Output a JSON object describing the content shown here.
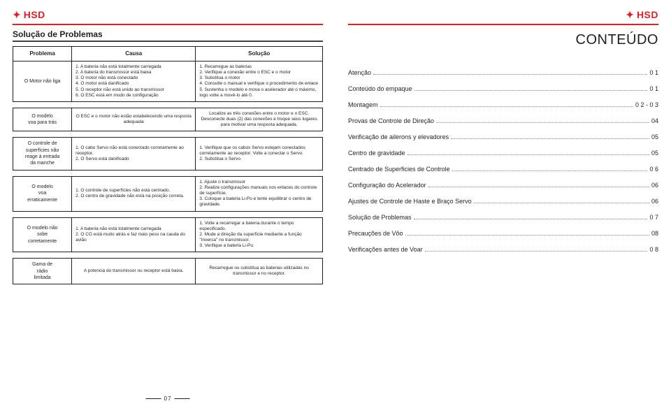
{
  "brand": "HSD",
  "leftPage": {
    "title": "Solução de Problemas",
    "columns": [
      "Problema",
      "Causa",
      "Solução"
    ],
    "pageNumber": "07",
    "rows": [
      {
        "problem": "O Motor não liga",
        "cause": "1. A bateria não está totalmente carregada\n2. A bateria do transmissor está baixa\n3. O motor não está conectado\n4. O motor está danificado\n5. O receptor não está unido ao transmissor\n6. O ESC está em modo de configuração",
        "solution": "1. Recarregue as baterias\n2. Verifique a conexão entre o ESC e o motor\n3. Substitua o motor\n4. Consulte o manual e verifique o procedimento de enlace\n5. Sustenha o modelo e mova o acelerador até o máximo, logo volte a movê-lo até 0."
      },
      {
        "problem": "O modelo\nvoa para trás",
        "cause": "O ESC e o motor não estão estabelecendo uma resposta adequada",
        "solution": "Localize as três conexões entre o motor e o ESC. Desconecte duas (2) das conexões e troque seus lugares para motivar uma resposta adequada."
      },
      {
        "problem": "O controle de\nsuperfícies não\nreage à entrada\nda manche",
        "cause": "1. O cabo Servo não está conectado corretamente ao receptor.\n2. O Servo está danificado",
        "solution": "1. Verifique que os cabos Servo estejam conectados corretamente ao receptor. Volte a conectar o Servo.\n2. Substitua o Servo."
      },
      {
        "problem": "O modelo\nvoa\nerraticamente",
        "cause": "1. O controle de superfícies não está centrado.\n2. O centro de gravidade não está na posição correta.",
        "solution": "1. Ajuste o transmissor\n2. Realize configurações manuais nos enlaces do controle de superfície.\n3. Coloque a bateria Li-Po e tente equilibrar o centro de gravidade."
      },
      {
        "problem": "O modelo não\nsobe\ncorretamente",
        "cause": "1. A bateria não está totalmente carregada\n2. O CG está muito atrás e faz mais peso na cauda do avião",
        "solution": "1. Volte a recarregar a bateria durante o tempo especificado.\n2. Mude a direção da superfície mediante a função \"Inversa\" no transmissor.\n3. Verifique a bateria Li-Po."
      },
      {
        "problem": "Gama de\nrádio\nlimitada",
        "cause": "A potencia do transmissor ou receptor está baixa.",
        "solution": "Recarregue ou substitua as baterias utilizadas no transmissor e no receptor."
      }
    ]
  },
  "rightPage": {
    "title": "CONTEÚDO",
    "toc": [
      {
        "label": "Atenção",
        "page": "0 1"
      },
      {
        "label": "Conteúdo do empaque",
        "page": "0 1"
      },
      {
        "label": "Montagem",
        "page": "0 2 - 0 3"
      },
      {
        "label": "Provas de Controle de Direção",
        "page": "04"
      },
      {
        "label": "Verificação de ailerons y elevadores",
        "page": "05"
      },
      {
        "label": "Centro de gravidade",
        "page": "05"
      },
      {
        "label": "Centrado de Superficies de Controle",
        "page": "0 6"
      },
      {
        "label": "Configuração do Acelerador",
        "page": "06"
      },
      {
        "label": "Ajustes de Controle de Haste e Braço Servo",
        "page": "06"
      },
      {
        "label": "Solução de Problemas",
        "page": "0 7"
      },
      {
        "label": "Precauções de Vôo",
        "page": "08"
      },
      {
        "label": "Verificações antes de Voar",
        "page": "0 8"
      }
    ]
  }
}
